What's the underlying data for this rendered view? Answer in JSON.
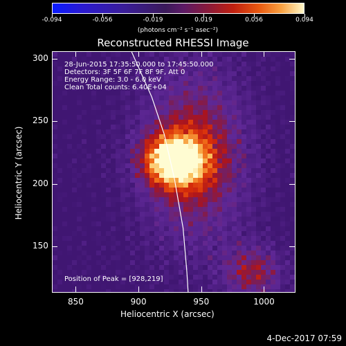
{
  "chart_data": {
    "type": "heatmap",
    "title": "Reconstructed RHESSI Image",
    "xlabel": "Heliocentric X (arcsec)",
    "ylabel": "Heliocentric Y (arcsec)",
    "xlim": [
      831,
      1024
    ],
    "ylim": [
      114,
      306
    ],
    "x_ticks": [
      850,
      900,
      950,
      1000
    ],
    "y_ticks": [
      150,
      200,
      250,
      300
    ],
    "colorbar": {
      "labels": [
        "-0.094",
        "-0.056",
        "-0.019",
        "0.019",
        "0.056",
        "0.094"
      ],
      "units": "(photons cm⁻² s⁻¹ asec⁻²)",
      "range": [
        -0.094,
        0.094
      ]
    },
    "peak": {
      "x": 928,
      "y": 219
    },
    "annotations": {
      "time": "28-Jun-2015 17:35:50.000 to 17:45:50.000",
      "detectors": "Detectors: 3F 5F 6F 7F 8F 9F, Att 0",
      "energy": "Energy Range: 3.0 - 6.0 keV",
      "clean": "Clean     Total counts: 6.40E+04",
      "peak_text": "Position of Peak = [928,219]"
    },
    "limb": [
      [
        894,
        306
      ],
      [
        910,
        270
      ],
      [
        920,
        240
      ],
      [
        928,
        205
      ],
      [
        935,
        165
      ],
      [
        938,
        130
      ],
      [
        939,
        114
      ]
    ]
  },
  "footer": {
    "timestamp": "4-Dec-2017 07:59"
  }
}
